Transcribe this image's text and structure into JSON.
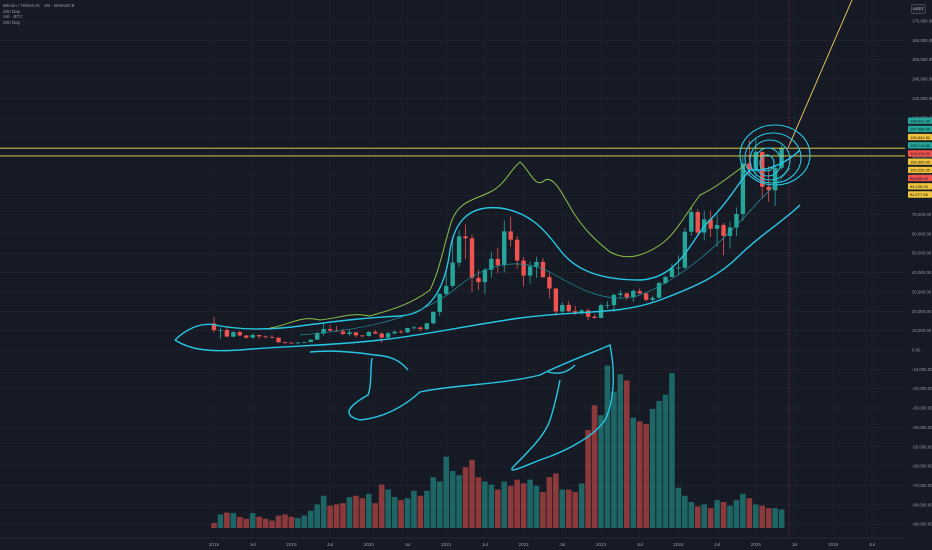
{
  "legend": {
    "symbol": "Bitcoin / TetherUS · 1M · BINANCE",
    "ma1": "200 Day",
    "vol": "Vol · BTC",
    "ma2": "200 Day"
  },
  "currency_badge": "USDT",
  "chart_data": {
    "type": "candlestick",
    "title": "Bitcoin / TetherUS · 1M · BINANCE",
    "y_axis": {
      "ticks": [
        "170,000.00",
        "160,000.00",
        "150,000.00",
        "140,000.00",
        "130,000.00",
        "120,000.00",
        "110,000.00",
        "100,000.00",
        "90,000.00",
        "80,000.00",
        "70,000.00",
        "60,000.00",
        "50,000.00",
        "40,000.00",
        "30,000.00",
        "20,000.00",
        "10,000.00",
        "0.00",
        "-10,000.00",
        "-20,000.00",
        "-30,000.00",
        "-40,000.00",
        "-50,000.00",
        "-60,000.00",
        "-70,000.00",
        "-80,000.00",
        "-90,000.00"
      ]
    },
    "x_axis": {
      "ticks": [
        "2018",
        "Jul",
        "2019",
        "Jul",
        "2020",
        "Jul",
        "2021",
        "Jul",
        "2022",
        "Jul",
        "2023",
        "Jul",
        "2024",
        "Jul",
        "2025",
        "Jul",
        "2026",
        "Jul"
      ]
    },
    "price_labels": [
      {
        "text": "108,921.42",
        "color": "#26a69a"
      },
      {
        "text": "107,998.00",
        "color": "#26a69a"
      },
      {
        "text": "105,841.82",
        "color": "#f0c43c"
      },
      {
        "text": "105,711.96",
        "color": "#26a69a"
      },
      {
        "text": "104,276.00",
        "color": "#ef5350"
      },
      {
        "text": "100,300.00",
        "color": "#f0c43c"
      },
      {
        "text": "100,226.95",
        "color": "#f0c43c"
      },
      {
        "text": "95,600.00",
        "color": "#ef5350"
      },
      {
        "text": "94,138.00",
        "color": "#f0c43c"
      },
      {
        "text": "94,077.56",
        "color": "#f0c43c"
      }
    ],
    "horizontal_lines": [
      104276,
      100300
    ],
    "candles": [
      [
        13715,
        10285,
        17176,
        9035
      ],
      [
        10285,
        10326,
        11786,
        5873
      ],
      [
        10326,
        6926,
        11710,
        6600
      ],
      [
        6926,
        9246,
        9759,
        6425
      ],
      [
        9246,
        7494,
        10020,
        7035
      ],
      [
        7494,
        6391,
        7755,
        5750
      ],
      [
        6391,
        7730,
        8500,
        6090
      ],
      [
        7730,
        7013,
        7760,
        5880
      ],
      [
        7013,
        6626,
        7410,
        6100
      ],
      [
        6626,
        6371,
        7680,
        6205
      ],
      [
        6371,
        4017,
        6500,
        3652
      ],
      [
        4017,
        3742,
        4310,
        3158
      ],
      [
        3742,
        3437,
        4140,
        3350
      ],
      [
        3437,
        3813,
        4210,
        3390
      ],
      [
        3813,
        4103,
        4100,
        3700
      ],
      [
        4103,
        5320,
        5480,
        4050
      ],
      [
        5320,
        8555,
        9200,
        5250
      ],
      [
        8555,
        10855,
        13970,
        7450
      ],
      [
        10855,
        10086,
        13200,
        9320
      ],
      [
        10086,
        9590,
        12325,
        9400
      ],
      [
        9590,
        8284,
        10940,
        7700
      ],
      [
        8284,
        9153,
        10370,
        7300
      ],
      [
        9153,
        7541,
        9170,
        6510
      ],
      [
        7541,
        7195,
        7750,
        6450
      ],
      [
        7195,
        9353,
        9600,
        6870
      ],
      [
        9353,
        8521,
        10500,
        8200
      ],
      [
        8521,
        6412,
        9190,
        3782
      ],
      [
        6412,
        8625,
        9460,
        6150
      ],
      [
        8625,
        9447,
        10070,
        8100
      ],
      [
        9447,
        9138,
        10380,
        8600
      ],
      [
        9138,
        11335,
        11450,
        8900
      ],
      [
        11335,
        11645,
        12470,
        10550
      ],
      [
        11645,
        10776,
        12050,
        9820
      ],
      [
        10776,
        13797,
        14100,
        10380
      ],
      [
        13797,
        19700,
        19860,
        13200
      ],
      [
        19700,
        28990,
        29300,
        17550
      ],
      [
        28990,
        33100,
        41950,
        28130
      ],
      [
        33100,
        45135,
        58350,
        32300
      ],
      [
        45135,
        58740,
        61850,
        43000
      ],
      [
        58740,
        57700,
        64850,
        47000
      ],
      [
        57700,
        37300,
        59600,
        30000
      ],
      [
        37300,
        35040,
        41330,
        31000
      ],
      [
        35040,
        41460,
        42400,
        28800
      ],
      [
        41460,
        47100,
        50500,
        37330
      ],
      [
        47100,
        43820,
        52920,
        39600
      ],
      [
        43820,
        61300,
        66999,
        40000
      ],
      [
        61300,
        57000,
        69000,
        53256
      ],
      [
        57000,
        46210,
        59050,
        42000
      ],
      [
        46210,
        38470,
        47990,
        32900
      ],
      [
        38470,
        43160,
        45820,
        34320
      ],
      [
        43160,
        45510,
        48190,
        37170
      ],
      [
        45510,
        37630,
        47450,
        37380
      ],
      [
        37630,
        31800,
        40000,
        26700
      ],
      [
        31800,
        19920,
        31900,
        17620
      ],
      [
        19920,
        23300,
        24670,
        18780
      ],
      [
        23300,
        20050,
        25210,
        19520
      ],
      [
        20050,
        19430,
        22800,
        18150
      ],
      [
        19430,
        20490,
        20990,
        18190
      ],
      [
        20490,
        17160,
        21470,
        15480
      ],
      [
        17160,
        16540,
        18390,
        16250
      ],
      [
        16540,
        23120,
        23960,
        16500
      ],
      [
        23120,
        23140,
        25250,
        21350
      ],
      [
        23140,
        28480,
        29190,
        19550
      ],
      [
        28480,
        29230,
        31000,
        26940
      ],
      [
        29230,
        27210,
        29820,
        25810
      ],
      [
        27210,
        30470,
        31430,
        24800
      ],
      [
        30470,
        29230,
        31800,
        28860
      ],
      [
        29230,
        25930,
        30050,
        25170
      ],
      [
        25930,
        26960,
        28160,
        24900
      ],
      [
        26960,
        34640,
        35280,
        26550
      ],
      [
        34640,
        37720,
        38420,
        34100
      ],
      [
        37720,
        42280,
        44700,
        37600
      ],
      [
        42280,
        42580,
        48970,
        38550
      ],
      [
        42580,
        61130,
        63000,
        41880
      ],
      [
        61130,
        71280,
        73780,
        59000
      ],
      [
        71280,
        60670,
        72800,
        59200
      ],
      [
        60670,
        67500,
        71980,
        56550
      ],
      [
        67500,
        62680,
        71990,
        58400
      ],
      [
        62680,
        64620,
        70000,
        53500
      ],
      [
        64620,
        58970,
        65600,
        49000
      ],
      [
        58970,
        63300,
        66500,
        52550
      ],
      [
        63300,
        70280,
        73600,
        58900
      ],
      [
        70280,
        96400,
        99800,
        66800
      ],
      [
        96400,
        93420,
        108350,
        90500
      ],
      [
        93420,
        102400,
        109580,
        89250
      ],
      [
        102400,
        84350,
        102500,
        78250
      ],
      [
        84350,
        82550,
        95000,
        76600
      ],
      [
        82550,
        94200,
        95800,
        74500
      ],
      [
        94200,
        104580,
        105800,
        93200
      ]
    ],
    "volume_relative": [
      8,
      22,
      25,
      24,
      18,
      15,
      24,
      18,
      15,
      12,
      20,
      22,
      18,
      16,
      20,
      28,
      38,
      52,
      36,
      38,
      40,
      50,
      52,
      48,
      55,
      40,
      70,
      62,
      50,
      45,
      48,
      60,
      52,
      60,
      82,
      75,
      115,
      92,
      85,
      98,
      110,
      82,
      75,
      70,
      62,
      75,
      68,
      78,
      72,
      78,
      68,
      58,
      82,
      88,
      62,
      62,
      58,
      72,
      158,
      198,
      182,
      262,
      220,
      248,
      238,
      178,
      172,
      168,
      192,
      205,
      215,
      250,
      65,
      52,
      42,
      35,
      38,
      32,
      45,
      42,
      36,
      45,
      55,
      48,
      38,
      36,
      32,
      32,
      30
    ]
  }
}
